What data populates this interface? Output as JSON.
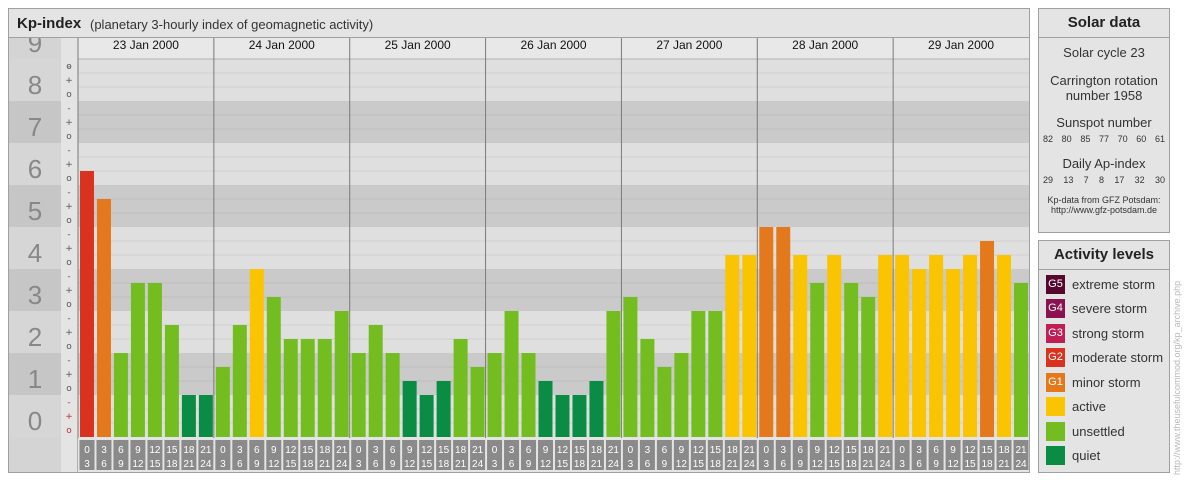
{
  "header": {
    "title": "Kp-index",
    "subtitle": "(planetary 3-hourly index of geomagnetic activity)"
  },
  "chart_data": {
    "type": "bar",
    "title": "Kp-index",
    "subtitle": "(planetary 3-hourly index of geomagnetic activity)",
    "ylim": [
      0,
      9
    ],
    "y_ticks": [
      "0",
      "1",
      "2",
      "3",
      "4",
      "5",
      "6",
      "7",
      "8",
      "9"
    ],
    "thirds_labels": [
      "o",
      "+",
      "-"
    ],
    "days": [
      "23 Jan 2000",
      "24 Jan 2000",
      "25 Jan 2000",
      "26 Jan 2000",
      "27 Jan 2000",
      "28 Jan 2000",
      "29 Jan 2000"
    ],
    "interval_labels": [
      [
        "0",
        "3"
      ],
      [
        "3",
        "6"
      ],
      [
        "6",
        "9"
      ],
      [
        "9",
        "12"
      ],
      [
        "12",
        "15"
      ],
      [
        "15",
        "18"
      ],
      [
        "18",
        "21"
      ],
      [
        "21",
        "24"
      ]
    ],
    "colors": {
      "quiet": "#0a8c44",
      "unsettled": "#73bd20",
      "active": "#fac400",
      "minor": "#e4781d",
      "moderate": "#d9321e",
      "strong": "#c01f55",
      "severe": "#8b1150",
      "extreme": "#57082f"
    },
    "values": [
      6.333,
      5.667,
      2.0,
      3.667,
      3.667,
      2.667,
      1.0,
      1.0,
      1.667,
      2.667,
      4.0,
      3.333,
      2.333,
      2.333,
      2.333,
      3.0,
      2.0,
      2.667,
      2.0,
      1.333,
      1.0,
      1.333,
      2.333,
      1.667,
      2.0,
      3.0,
      2.0,
      1.333,
      1.0,
      1.0,
      1.333,
      3.0,
      3.333,
      2.333,
      1.667,
      2.0,
      3.0,
      3.0,
      4.333,
      4.333,
      5.0,
      5.0,
      4.333,
      3.667,
      4.333,
      3.667,
      3.333,
      4.333,
      4.333,
      4.0,
      4.333,
      4.0,
      4.333,
      4.667,
      4.333,
      3.667
    ],
    "grid": true
  },
  "solar": {
    "title": "Solar data",
    "cycle": "Solar cycle 23",
    "carrington_line1": "Carrington rotation",
    "carrington_line2": "number 1958",
    "sunspot_title": "Sunspot number",
    "sunspot_values": [
      "82",
      "80",
      "85",
      "77",
      "70",
      "60",
      "61"
    ],
    "ap_title": "Daily Ap-index",
    "ap_values": [
      "29",
      "13",
      "7",
      "8",
      "17",
      "32",
      "30"
    ],
    "credit_line1": "Kp-data from GFZ Potsdam:",
    "credit_line2": "http://www.gfz-potsdam.de"
  },
  "levels": {
    "title": "Activity levels",
    "items": [
      {
        "badge": "G5",
        "label": "extreme storm",
        "color": "#57082f"
      },
      {
        "badge": "G4",
        "label": "severe storm",
        "color": "#8b1150"
      },
      {
        "badge": "G3",
        "label": "strong storm",
        "color": "#c01f55"
      },
      {
        "badge": "G2",
        "label": "moderate storm",
        "color": "#d9321e"
      },
      {
        "badge": "G1",
        "label": "minor storm",
        "color": "#e4781d"
      },
      {
        "badge": "",
        "label": "active",
        "color": "#fac400"
      },
      {
        "badge": "",
        "label": "unsettled",
        "color": "#73bd20"
      },
      {
        "badge": "",
        "label": "quiet",
        "color": "#0a8c44"
      }
    ]
  },
  "watermark": "http://www.theusefulcommod.org/kp_archive.php"
}
